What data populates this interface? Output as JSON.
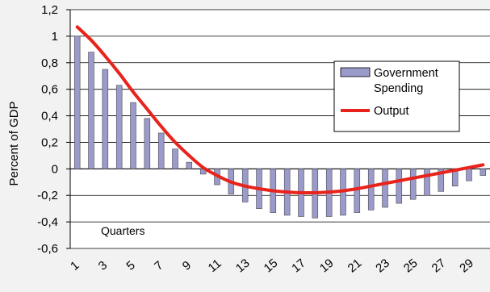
{
  "chart_data": {
    "type": "bar",
    "title": "",
    "xlabel": "Quarters",
    "ylabel": "Percent of GDP",
    "ylim": [
      -0.6,
      1.2
    ],
    "yticks": [
      "1,2",
      "1",
      "0,8",
      "0,6",
      "0,4",
      "0,2",
      "0",
      "-0,2",
      "-0,4",
      "-0,6"
    ],
    "ytick_values": [
      1.2,
      1.0,
      0.8,
      0.6,
      0.4,
      0.2,
      0,
      -0.2,
      -0.4,
      -0.6
    ],
    "categories": [
      "1",
      "2",
      "3",
      "4",
      "5",
      "6",
      "7",
      "8",
      "9",
      "10",
      "11",
      "12",
      "13",
      "14",
      "15",
      "16",
      "17",
      "18",
      "19",
      "20",
      "21",
      "22",
      "23",
      "24",
      "25",
      "26",
      "27",
      "28",
      "29",
      "30"
    ],
    "xtick_labels": [
      "1",
      "3",
      "5",
      "7",
      "9",
      "11",
      "13",
      "15",
      "17",
      "19",
      "21",
      "23",
      "25",
      "27",
      "29"
    ],
    "grid": "horizontal",
    "legend_position": "center-right",
    "series": [
      {
        "name": "Government Spending",
        "kind": "bar",
        "color": "#9a9acb",
        "values": [
          1.0,
          0.88,
          0.75,
          0.63,
          0.5,
          0.38,
          0.27,
          0.15,
          0.05,
          -0.04,
          -0.12,
          -0.19,
          -0.25,
          -0.3,
          -0.33,
          -0.35,
          -0.36,
          -0.37,
          -0.36,
          -0.35,
          -0.33,
          -0.31,
          -0.29,
          -0.26,
          -0.23,
          -0.2,
          -0.17,
          -0.13,
          -0.09,
          -0.05
        ]
      },
      {
        "name": "Output",
        "kind": "line",
        "color": "#e8231c",
        "values": [
          1.07,
          0.97,
          0.85,
          0.72,
          0.58,
          0.45,
          0.32,
          0.2,
          0.1,
          0.01,
          -0.05,
          -0.1,
          -0.13,
          -0.15,
          -0.165,
          -0.175,
          -0.18,
          -0.18,
          -0.175,
          -0.165,
          -0.15,
          -0.13,
          -0.11,
          -0.09,
          -0.07,
          -0.05,
          -0.03,
          -0.01,
          0.01,
          0.03
        ]
      }
    ]
  }
}
